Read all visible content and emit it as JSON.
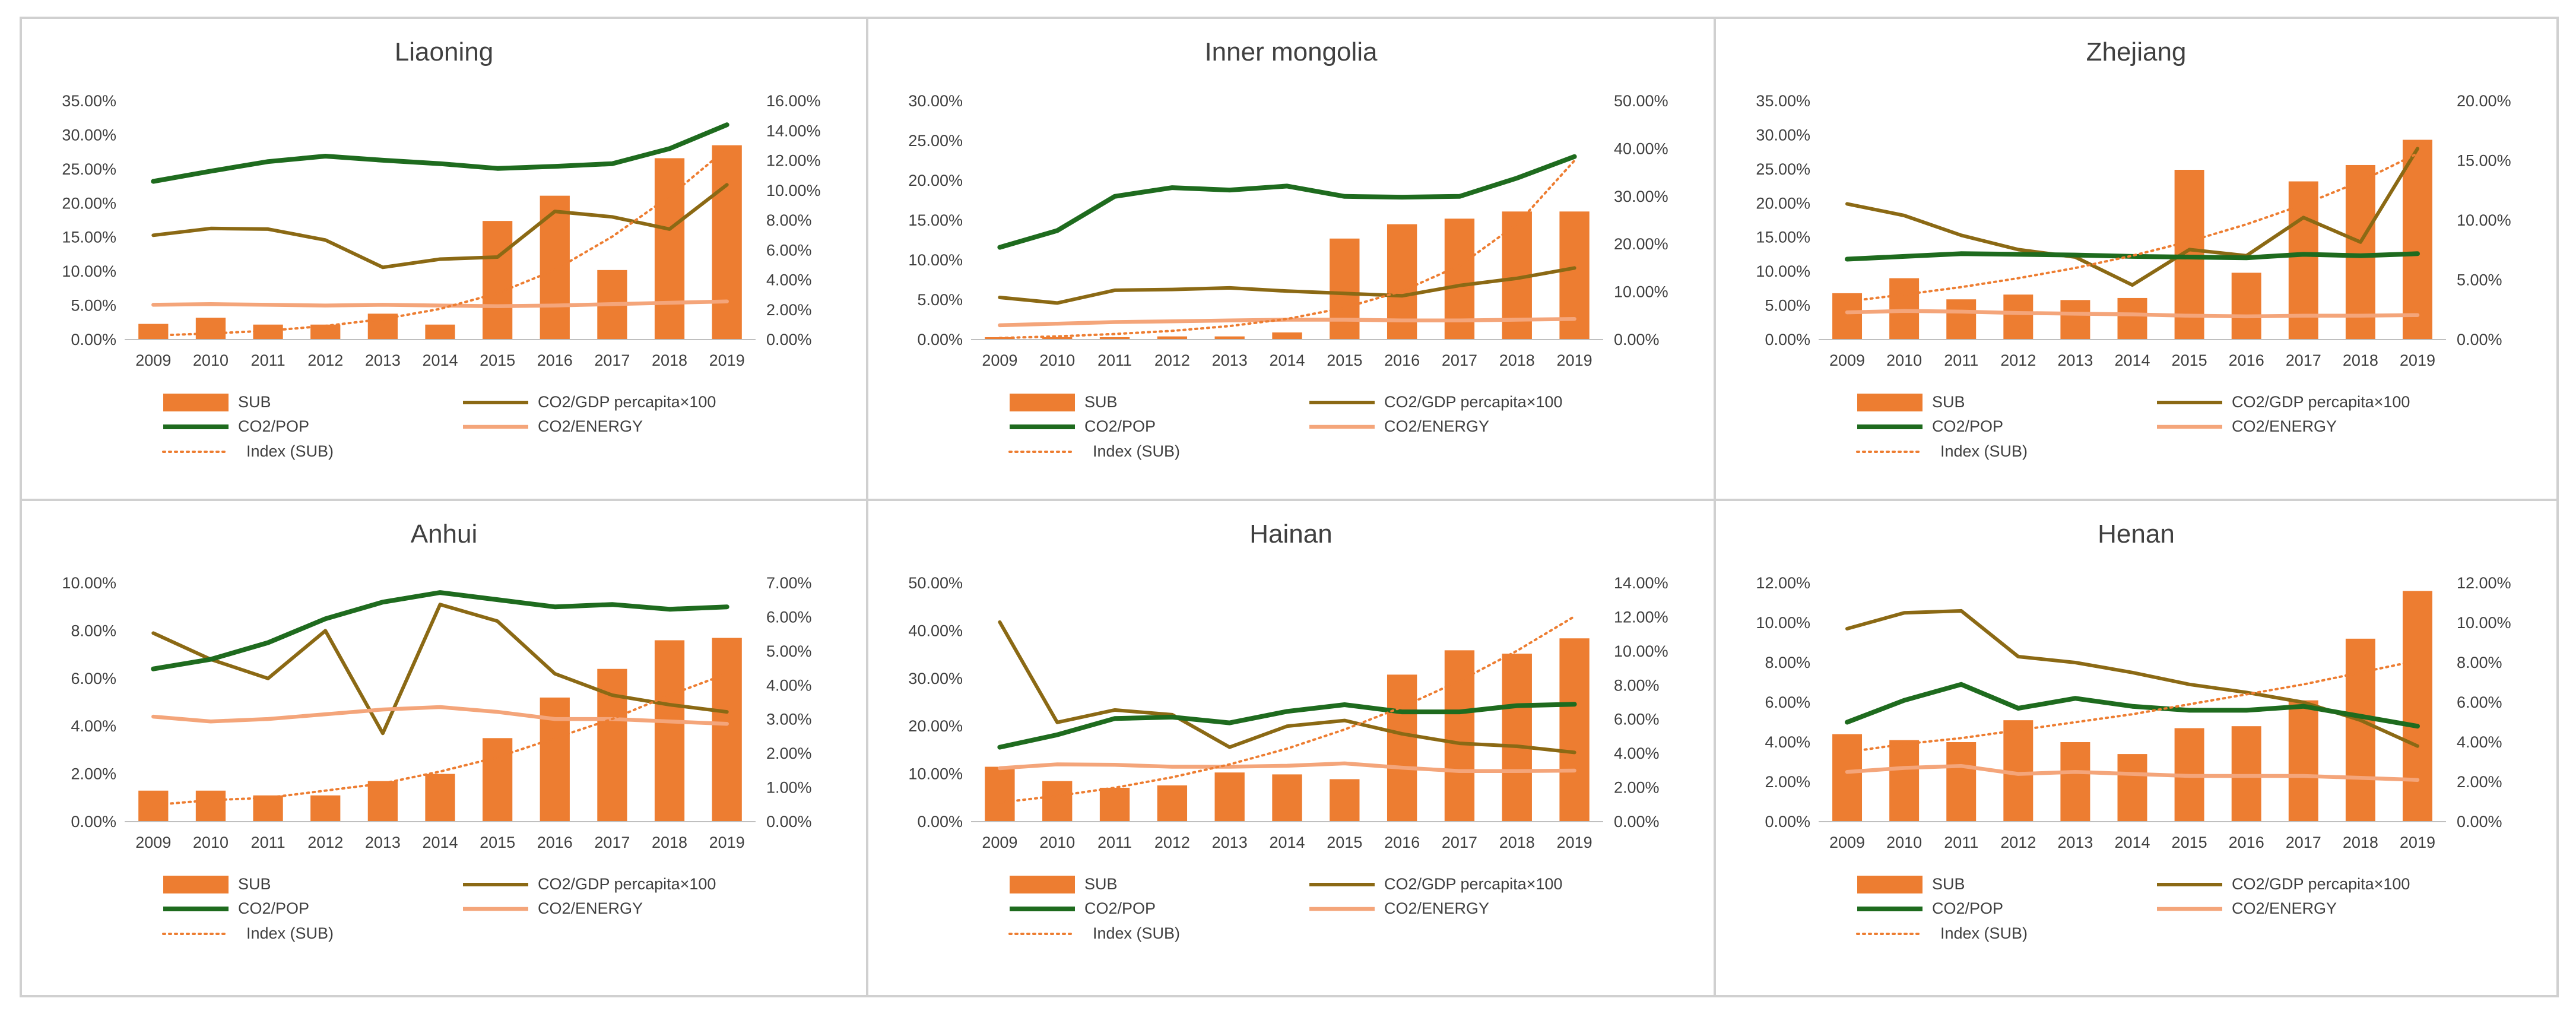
{
  "colors": {
    "sub": "#ED7D31",
    "gdp": "#8B6914",
    "pop": "#1E6B1E",
    "energy": "#F4A57A",
    "index": "#ED7D31"
  },
  "legend_labels": {
    "sub": "SUB",
    "gdp": "CO2/GDP percapita×100",
    "pop": "CO2/POP",
    "energy": "CO2/ENERGY",
    "index": "Index (SUB)"
  },
  "chart_data": [
    {
      "type": "bar",
      "title": "Liaoning",
      "categories": [
        "2009",
        "2010",
        "2011",
        "2012",
        "2013",
        "2014",
        "2015",
        "2016",
        "2017",
        "2018",
        "2019"
      ],
      "left_axis": {
        "ticks": [
          "0.00%",
          "5.00%",
          "10.00%",
          "15.00%",
          "20.00%",
          "25.00%",
          "30.00%",
          "35.00%"
        ],
        "max": 35
      },
      "right_axis": {
        "ticks": [
          "0.00%",
          "2.00%",
          "4.00%",
          "6.00%",
          "8.00%",
          "10.00%",
          "12.00%",
          "14.00%",
          "16.00%"
        ],
        "max": 16
      },
      "series": [
        {
          "name": "SUB",
          "key": "sub",
          "kind": "bar",
          "axis": "left",
          "values": [
            2.3,
            3.2,
            2.2,
            2.2,
            3.8,
            2.2,
            17.4,
            21.1,
            10.2,
            26.6,
            28.5
          ]
        },
        {
          "name": "CO2/GDP percapita×100",
          "key": "gdp",
          "kind": "line",
          "axis": "left",
          "values": [
            15.3,
            16.3,
            16.2,
            14.6,
            10.6,
            11.8,
            12.1,
            18.8,
            18.0,
            16.2,
            22.7
          ]
        },
        {
          "name": "CO2/POP",
          "key": "pop",
          "kind": "line",
          "axis": "left",
          "values": [
            23.2,
            24.7,
            26.1,
            26.9,
            26.3,
            25.8,
            25.1,
            25.4,
            25.8,
            28.0,
            31.5
          ]
        },
        {
          "name": "CO2/ENERGY",
          "key": "energy",
          "kind": "line",
          "axis": "left",
          "values": [
            5.1,
            5.2,
            5.1,
            5.0,
            5.1,
            5.0,
            4.9,
            5.0,
            5.2,
            5.4,
            5.6
          ]
        },
        {
          "name": "Index (SUB)",
          "key": "index",
          "kind": "trend",
          "axis": "left",
          "values": [
            0.6,
            0.9,
            1.3,
            2.0,
            3.0,
            4.5,
            6.8,
            10.2,
            15.1,
            21.0,
            28.0
          ]
        }
      ]
    },
    {
      "type": "bar",
      "title": "Inner mongolia",
      "categories": [
        "2009",
        "2010",
        "2011",
        "2012",
        "2013",
        "2014",
        "2015",
        "2016",
        "2017",
        "2018",
        "2019"
      ],
      "left_axis": {
        "ticks": [
          "0.00%",
          "5.00%",
          "10.00%",
          "15.00%",
          "20.00%",
          "25.00%",
          "30.00%"
        ],
        "max": 30
      },
      "right_axis": {
        "ticks": [
          "0.00%",
          "10.00%",
          "20.00%",
          "30.00%",
          "40.00%",
          "50.00%"
        ],
        "max": 50
      },
      "series": [
        {
          "name": "SUB",
          "key": "sub",
          "kind": "bar",
          "axis": "left",
          "values": [
            0.3,
            0.3,
            0.3,
            0.4,
            0.4,
            0.9,
            12.7,
            14.5,
            15.2,
            16.1,
            16.1
          ]
        },
        {
          "name": "CO2/GDP percapita×100",
          "key": "gdp",
          "kind": "line",
          "axis": "left",
          "values": [
            5.3,
            4.6,
            6.2,
            6.3,
            6.5,
            6.1,
            5.8,
            5.5,
            6.8,
            7.7,
            9.0
          ]
        },
        {
          "name": "CO2/POP",
          "key": "pop",
          "kind": "line",
          "axis": "left",
          "values": [
            11.6,
            13.7,
            18.0,
            19.1,
            18.8,
            19.3,
            18.0,
            17.9,
            18.0,
            20.3,
            23.0
          ]
        },
        {
          "name": "CO2/ENERGY",
          "key": "energy",
          "kind": "line",
          "axis": "left",
          "values": [
            1.8,
            2.0,
            2.2,
            2.3,
            2.4,
            2.5,
            2.5,
            2.4,
            2.4,
            2.5,
            2.6
          ]
        },
        {
          "name": "Index (SUB)",
          "key": "index",
          "kind": "trend",
          "axis": "left",
          "values": [
            0.2,
            0.4,
            0.7,
            1.1,
            1.7,
            2.6,
            4.0,
            6.1,
            9.3,
            14.5,
            22.5
          ]
        }
      ]
    },
    {
      "type": "bar",
      "title": "Zhejiang",
      "categories": [
        "2009",
        "2010",
        "2011",
        "2012",
        "2013",
        "2014",
        "2015",
        "2016",
        "2017",
        "2018",
        "2019"
      ],
      "left_axis": {
        "ticks": [
          "0.00%",
          "5.00%",
          "10.00%",
          "15.00%",
          "20.00%",
          "25.00%",
          "30.00%",
          "35.00%"
        ],
        "max": 35
      },
      "right_axis": {
        "ticks": [
          "0.00%",
          "5.00%",
          "10.00%",
          "15.00%",
          "20.00%"
        ],
        "max": 20
      },
      "series": [
        {
          "name": "SUB",
          "key": "sub",
          "kind": "bar",
          "axis": "left",
          "values": [
            6.8,
            9.0,
            5.9,
            6.6,
            5.8,
            6.1,
            24.9,
            9.8,
            23.2,
            25.6,
            29.3
          ]
        },
        {
          "name": "CO2/GDP percapita×100",
          "key": "gdp",
          "kind": "line",
          "axis": "left",
          "values": [
            19.9,
            18.2,
            15.3,
            13.2,
            12.1,
            8.0,
            13.2,
            12.3,
            17.9,
            14.3,
            28.0
          ]
        },
        {
          "name": "CO2/POP",
          "key": "pop",
          "kind": "line",
          "axis": "left",
          "values": [
            11.8,
            12.2,
            12.6,
            12.5,
            12.4,
            12.2,
            12.1,
            12.0,
            12.5,
            12.3,
            12.6
          ]
        },
        {
          "name": "CO2/ENERGY",
          "key": "energy",
          "kind": "line",
          "axis": "left",
          "values": [
            4.0,
            4.2,
            4.1,
            3.9,
            3.8,
            3.7,
            3.5,
            3.4,
            3.5,
            3.5,
            3.6
          ]
        },
        {
          "name": "Index (SUB)",
          "key": "index",
          "kind": "trend",
          "axis": "left",
          "values": [
            5.6,
            6.6,
            7.7,
            9.0,
            10.5,
            12.3,
            14.4,
            16.9,
            19.8,
            23.2,
            27.3
          ]
        }
      ]
    },
    {
      "type": "bar",
      "title": "Anhui",
      "categories": [
        "2009",
        "2010",
        "2011",
        "2012",
        "2013",
        "2014",
        "2015",
        "2016",
        "2017",
        "2018",
        "2019"
      ],
      "left_axis": {
        "ticks": [
          "0.00%",
          "2.00%",
          "4.00%",
          "6.00%",
          "8.00%",
          "10.00%"
        ],
        "max": 10
      },
      "right_axis": {
        "ticks": [
          "0.00%",
          "1.00%",
          "2.00%",
          "3.00%",
          "4.00%",
          "5.00%",
          "6.00%",
          "7.00%"
        ],
        "max": 7
      },
      "series": [
        {
          "name": "SUB",
          "key": "sub",
          "kind": "bar",
          "axis": "left",
          "values": [
            1.3,
            1.3,
            1.1,
            1.1,
            1.7,
            2.0,
            3.5,
            5.2,
            6.4,
            7.6,
            7.7
          ]
        },
        {
          "name": "CO2/GDP percapita×100",
          "key": "gdp",
          "kind": "line",
          "axis": "left",
          "values": [
            7.9,
            6.8,
            6.0,
            8.0,
            3.7,
            9.1,
            8.4,
            6.2,
            5.3,
            4.9,
            4.6
          ]
        },
        {
          "name": "CO2/POP",
          "key": "pop",
          "kind": "line",
          "axis": "left",
          "values": [
            6.4,
            6.8,
            7.5,
            8.5,
            9.2,
            9.6,
            9.3,
            9.0,
            9.1,
            8.9,
            9.0
          ]
        },
        {
          "name": "CO2/ENERGY",
          "key": "energy",
          "kind": "line",
          "axis": "left",
          "values": [
            4.4,
            4.2,
            4.3,
            4.5,
            4.7,
            4.8,
            4.6,
            4.3,
            4.3,
            4.2,
            4.1
          ]
        },
        {
          "name": "Index (SUB)",
          "key": "index",
          "kind": "trend",
          "axis": "left",
          "values": [
            0.7,
            0.9,
            1.0,
            1.3,
            1.6,
            2.1,
            2.7,
            3.5,
            4.3,
            5.3,
            6.2
          ]
        }
      ]
    },
    {
      "type": "bar",
      "title": "Hainan",
      "categories": [
        "2009",
        "2010",
        "2011",
        "2012",
        "2013",
        "2014",
        "2015",
        "2016",
        "2017",
        "2018",
        "2019"
      ],
      "left_axis": {
        "ticks": [
          "0.00%",
          "10.00%",
          "20.00%",
          "30.00%",
          "40.00%",
          "50.00%"
        ],
        "max": 50
      },
      "right_axis": {
        "ticks": [
          "0.00%",
          "2.00%",
          "4.00%",
          "6.00%",
          "8.00%",
          "10.00%",
          "12.00%",
          "14.00%"
        ],
        "max": 14
      },
      "series": [
        {
          "name": "SUB",
          "key": "sub",
          "kind": "bar",
          "axis": "left",
          "values": [
            11.5,
            8.5,
            7.1,
            7.6,
            10.3,
            9.9,
            8.9,
            30.8,
            35.9,
            35.2,
            38.4
          ]
        },
        {
          "name": "CO2/GDP percapita×100",
          "key": "gdp",
          "kind": "line",
          "axis": "left",
          "values": [
            41.8,
            20.8,
            23.4,
            22.4,
            15.6,
            20.0,
            21.2,
            18.4,
            16.4,
            15.8,
            14.5
          ]
        },
        {
          "name": "CO2/POP",
          "key": "pop",
          "kind": "line",
          "axis": "left",
          "values": [
            15.6,
            18.2,
            21.6,
            21.9,
            20.7,
            23.1,
            24.5,
            23.0,
            23.0,
            24.3,
            24.6
          ]
        },
        {
          "name": "CO2/ENERGY",
          "key": "energy",
          "kind": "line",
          "axis": "left",
          "values": [
            11.2,
            12.0,
            11.9,
            11.5,
            11.5,
            11.7,
            12.2,
            11.3,
            10.6,
            10.6,
            10.7
          ]
        },
        {
          "name": "Index (SUB)",
          "key": "index",
          "kind": "trend",
          "axis": "left",
          "values": [
            4.0,
            5.4,
            7.1,
            9.3,
            12.0,
            15.3,
            19.3,
            24.0,
            29.5,
            35.8,
            43.0
          ]
        }
      ]
    },
    {
      "type": "bar",
      "title": "Henan",
      "categories": [
        "2009",
        "2010",
        "2011",
        "2012",
        "2013",
        "2014",
        "2015",
        "2016",
        "2017",
        "2018",
        "2019"
      ],
      "left_axis": {
        "ticks": [
          "0.00%",
          "2.00%",
          "4.00%",
          "6.00%",
          "8.00%",
          "10.00%",
          "12.00%"
        ],
        "max": 12
      },
      "right_axis": {
        "ticks": [
          "0.00%",
          "2.00%",
          "4.00%",
          "6.00%",
          "8.00%",
          "10.00%",
          "12.00%"
        ],
        "max": 12
      },
      "series": [
        {
          "name": "SUB",
          "key": "sub",
          "kind": "bar",
          "axis": "left",
          "values": [
            4.4,
            4.1,
            4.0,
            5.1,
            4.0,
            3.4,
            4.7,
            4.8,
            6.1,
            9.2,
            11.6
          ]
        },
        {
          "name": "CO2/GDP percapita×100",
          "key": "gdp",
          "kind": "line",
          "axis": "left",
          "values": [
            9.7,
            10.5,
            10.6,
            8.3,
            8.0,
            7.5,
            6.9,
            6.5,
            6.0,
            5.1,
            3.8
          ]
        },
        {
          "name": "CO2/POP",
          "key": "pop",
          "kind": "line",
          "axis": "left",
          "values": [
            5.0,
            6.1,
            6.9,
            5.7,
            6.2,
            5.8,
            5.6,
            5.6,
            5.8,
            5.3,
            4.8
          ]
        },
        {
          "name": "CO2/ENERGY",
          "key": "energy",
          "kind": "line",
          "axis": "left",
          "values": [
            2.5,
            2.7,
            2.8,
            2.4,
            2.5,
            2.4,
            2.3,
            2.3,
            2.3,
            2.2,
            2.1
          ]
        },
        {
          "name": "Index (SUB)",
          "key": "index",
          "kind": "trend",
          "axis": "left",
          "values": [
            3.5,
            3.9,
            4.2,
            4.6,
            5.0,
            5.4,
            5.9,
            6.4,
            6.9,
            7.5,
            8.1
          ]
        }
      ]
    }
  ]
}
